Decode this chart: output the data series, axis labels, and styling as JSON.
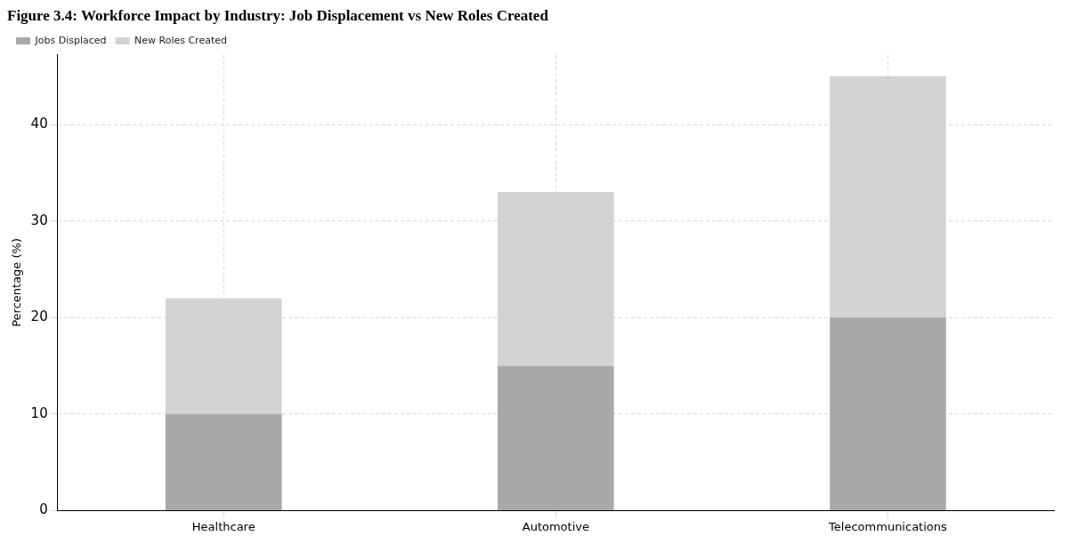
{
  "chart_data": {
    "type": "bar",
    "title": "Figure 3.4: Workforce Impact by Industry: Job Displacement vs New Roles Created",
    "ylabel": "Percentage (%)",
    "categories": [
      "Healthcare",
      "Automotive",
      "Telecommunications"
    ],
    "stacked": true,
    "series": [
      {
        "name": "Jobs Displaced",
        "color": "#a9a9a9",
        "values": [
          10,
          15,
          20
        ]
      },
      {
        "name": "New Roles Created",
        "color": "#d3d3d3",
        "values": [
          12,
          18,
          25
        ]
      }
    ],
    "ylim": [
      0,
      47.25
    ],
    "yticks": [
      0,
      10,
      20,
      30,
      40
    ],
    "grid": true,
    "legend": "top left"
  }
}
